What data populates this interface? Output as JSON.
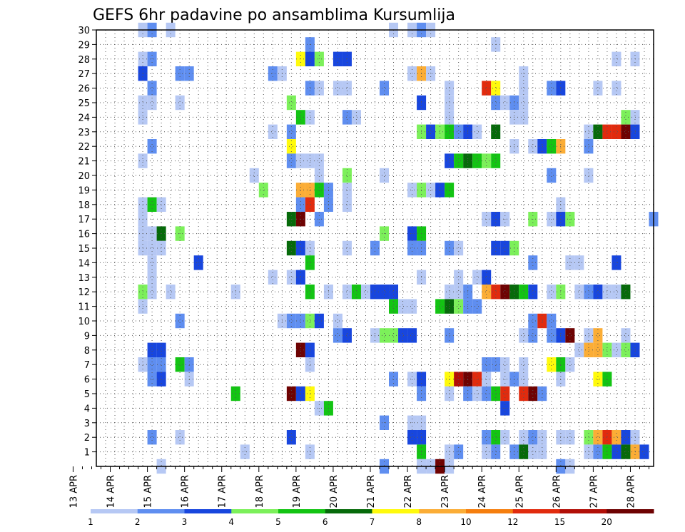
{
  "chart_data": {
    "type": "heatmap",
    "title": "GEFS 6hr padavine po ansamblima Kursumlija",
    "xlabel": "",
    "ylabel": "",
    "x_ticks": [
      "13 APR",
      "14 APR",
      "15 APR",
      "16 APR",
      "17 APR",
      "18 APR",
      "19 APR",
      "20 APR",
      "21 APR",
      "22 APR",
      "23 APR",
      "24 APR",
      "25 APR",
      "26 APR",
      "27 APR",
      "28 APR"
    ],
    "y_ticks": [
      "1",
      "2",
      "3",
      "4",
      "5",
      "6",
      "7",
      "8",
      "9",
      "10",
      "11",
      "12",
      "13",
      "14",
      "15",
      "16",
      "17",
      "18",
      "19",
      "20",
      "21",
      "22",
      "23",
      "24",
      "25",
      "26",
      "27",
      "28",
      "29",
      "30"
    ],
    "x_range_steps": [
      0,
      60
    ],
    "steps_per_day": 4,
    "y_range_members": [
      0,
      30
    ],
    "grid": true,
    "colorbar": {
      "ticks": [
        "1",
        "2",
        "3",
        "4",
        "5",
        "6",
        "7",
        "8",
        "10",
        "12",
        "15",
        "20"
      ],
      "colors": [
        "#b6c8f4",
        "#5f8ef0",
        "#1846de",
        "#7cf05a",
        "#13c413",
        "#066a0a",
        "#fffa0c",
        "#fbad36",
        "#f57e0e",
        "#e12b0e",
        "#b20f07",
        "#6e0202"
      ]
    },
    "cells": [
      [
        30,
        5,
        1
      ],
      [
        30,
        6,
        2
      ],
      [
        30,
        8,
        1
      ],
      [
        30,
        32,
        1
      ],
      [
        30,
        34,
        1
      ],
      [
        30,
        35,
        2
      ],
      [
        30,
        36,
        1
      ],
      [
        29,
        23,
        2
      ],
      [
        29,
        43,
        1
      ],
      [
        28,
        5,
        1
      ],
      [
        28,
        6,
        2
      ],
      [
        28,
        22,
        7
      ],
      [
        28,
        23,
        3
      ],
      [
        28,
        24,
        4
      ],
      [
        28,
        26,
        3
      ],
      [
        28,
        27,
        3
      ],
      [
        28,
        56,
        1
      ],
      [
        28,
        58,
        1
      ],
      [
        27,
        5,
        3
      ],
      [
        27,
        9,
        2
      ],
      [
        27,
        10,
        2
      ],
      [
        27,
        19,
        2
      ],
      [
        27,
        20,
        1
      ],
      [
        27,
        34,
        1
      ],
      [
        27,
        35,
        8
      ],
      [
        27,
        36,
        1
      ],
      [
        27,
        46,
        1
      ],
      [
        26,
        6,
        2
      ],
      [
        26,
        23,
        2
      ],
      [
        26,
        24,
        1
      ],
      [
        26,
        26,
        1
      ],
      [
        26,
        27,
        1
      ],
      [
        26,
        31,
        2
      ],
      [
        26,
        38,
        1
      ],
      [
        26,
        42,
        10
      ],
      [
        26,
        43,
        7
      ],
      [
        26,
        46,
        1
      ],
      [
        26,
        49,
        2
      ],
      [
        26,
        50,
        3
      ],
      [
        26,
        54,
        1
      ],
      [
        26,
        56,
        1
      ],
      [
        25,
        5,
        1
      ],
      [
        25,
        6,
        1
      ],
      [
        25,
        9,
        1
      ],
      [
        25,
        21,
        4
      ],
      [
        25,
        35,
        3
      ],
      [
        25,
        38,
        1
      ],
      [
        25,
        43,
        2
      ],
      [
        25,
        44,
        1
      ],
      [
        25,
        45,
        2
      ],
      [
        25,
        46,
        1
      ],
      [
        24,
        5,
        1
      ],
      [
        24,
        22,
        5
      ],
      [
        24,
        23,
        1
      ],
      [
        24,
        27,
        2
      ],
      [
        24,
        28,
        1
      ],
      [
        24,
        38,
        1
      ],
      [
        24,
        45,
        1
      ],
      [
        24,
        46,
        1
      ],
      [
        24,
        57,
        4
      ],
      [
        24,
        58,
        1
      ],
      [
        23,
        19,
        1
      ],
      [
        23,
        21,
        2
      ],
      [
        23,
        35,
        4
      ],
      [
        23,
        36,
        3
      ],
      [
        23,
        37,
        4
      ],
      [
        23,
        38,
        5
      ],
      [
        23,
        39,
        2
      ],
      [
        23,
        40,
        3
      ],
      [
        23,
        41,
        1
      ],
      [
        23,
        43,
        6
      ],
      [
        23,
        53,
        1
      ],
      [
        23,
        54,
        6
      ],
      [
        23,
        55,
        10
      ],
      [
        23,
        56,
        10
      ],
      [
        23,
        57,
        12
      ],
      [
        23,
        58,
        3
      ],
      [
        22,
        6,
        2
      ],
      [
        22,
        21,
        7
      ],
      [
        22,
        45,
        1
      ],
      [
        22,
        47,
        1
      ],
      [
        22,
        48,
        3
      ],
      [
        22,
        49,
        5
      ],
      [
        22,
        50,
        8
      ],
      [
        22,
        53,
        2
      ],
      [
        21,
        5,
        1
      ],
      [
        21,
        21,
        2
      ],
      [
        21,
        22,
        1
      ],
      [
        21,
        23,
        1
      ],
      [
        21,
        24,
        1
      ],
      [
        21,
        38,
        3
      ],
      [
        21,
        39,
        5
      ],
      [
        21,
        40,
        6
      ],
      [
        21,
        41,
        5
      ],
      [
        21,
        42,
        4
      ],
      [
        21,
        43,
        5
      ],
      [
        20,
        17,
        1
      ],
      [
        20,
        24,
        1
      ],
      [
        20,
        27,
        4
      ],
      [
        20,
        31,
        1
      ],
      [
        20,
        49,
        2
      ],
      [
        20,
        53,
        1
      ],
      [
        19,
        18,
        4
      ],
      [
        19,
        22,
        8
      ],
      [
        19,
        23,
        8
      ],
      [
        19,
        24,
        5
      ],
      [
        19,
        25,
        2
      ],
      [
        19,
        27,
        1
      ],
      [
        19,
        34,
        1
      ],
      [
        19,
        35,
        4
      ],
      [
        19,
        36,
        1
      ],
      [
        19,
        37,
        3
      ],
      [
        19,
        38,
        5
      ],
      [
        18,
        5,
        1
      ],
      [
        18,
        6,
        5
      ],
      [
        18,
        7,
        1
      ],
      [
        18,
        22,
        2
      ],
      [
        18,
        23,
        10
      ],
      [
        18,
        25,
        2
      ],
      [
        18,
        27,
        1
      ],
      [
        18,
        50,
        1
      ],
      [
        17,
        5,
        1
      ],
      [
        17,
        21,
        6
      ],
      [
        17,
        22,
        12
      ],
      [
        17,
        24,
        2
      ],
      [
        17,
        42,
        1
      ],
      [
        17,
        43,
        3
      ],
      [
        17,
        44,
        1
      ],
      [
        17,
        47,
        4
      ],
      [
        17,
        49,
        1
      ],
      [
        17,
        50,
        3
      ],
      [
        17,
        51,
        4
      ],
      [
        17,
        60,
        2
      ],
      [
        16,
        5,
        1
      ],
      [
        16,
        6,
        1
      ],
      [
        16,
        7,
        6
      ],
      [
        16,
        9,
        4
      ],
      [
        16,
        31,
        4
      ],
      [
        16,
        34,
        3
      ],
      [
        16,
        35,
        5
      ],
      [
        15,
        5,
        1
      ],
      [
        15,
        6,
        1
      ],
      [
        15,
        7,
        1
      ],
      [
        15,
        21,
        6
      ],
      [
        15,
        22,
        3
      ],
      [
        15,
        23,
        1
      ],
      [
        15,
        27,
        1
      ],
      [
        15,
        30,
        2
      ],
      [
        15,
        34,
        2
      ],
      [
        15,
        35,
        2
      ],
      [
        15,
        38,
        2
      ],
      [
        15,
        39,
        1
      ],
      [
        15,
        43,
        3
      ],
      [
        15,
        44,
        3
      ],
      [
        15,
        45,
        4
      ],
      [
        14,
        6,
        1
      ],
      [
        14,
        11,
        3
      ],
      [
        14,
        23,
        5
      ],
      [
        14,
        47,
        2
      ],
      [
        14,
        51,
        1
      ],
      [
        14,
        52,
        1
      ],
      [
        14,
        56,
        3
      ],
      [
        13,
        6,
        1
      ],
      [
        13,
        19,
        1
      ],
      [
        13,
        21,
        1
      ],
      [
        13,
        22,
        3
      ],
      [
        13,
        35,
        1
      ],
      [
        13,
        39,
        1
      ],
      [
        13,
        41,
        1
      ],
      [
        13,
        42,
        3
      ],
      [
        12,
        5,
        4
      ],
      [
        12,
        6,
        1
      ],
      [
        12,
        8,
        1
      ],
      [
        12,
        15,
        1
      ],
      [
        12,
        23,
        5
      ],
      [
        12,
        25,
        1
      ],
      [
        12,
        27,
        1
      ],
      [
        12,
        28,
        5
      ],
      [
        12,
        29,
        1
      ],
      [
        12,
        30,
        3
      ],
      [
        12,
        31,
        3
      ],
      [
        12,
        32,
        3
      ],
      [
        12,
        38,
        1
      ],
      [
        12,
        39,
        1
      ],
      [
        12,
        40,
        2
      ],
      [
        12,
        42,
        8
      ],
      [
        12,
        43,
        10
      ],
      [
        12,
        44,
        12
      ],
      [
        12,
        45,
        6
      ],
      [
        12,
        46,
        5
      ],
      [
        12,
        47,
        3
      ],
      [
        12,
        49,
        1
      ],
      [
        12,
        50,
        4
      ],
      [
        12,
        52,
        1
      ],
      [
        12,
        53,
        2
      ],
      [
        12,
        54,
        3
      ],
      [
        12,
        55,
        1
      ],
      [
        12,
        56,
        1
      ],
      [
        12,
        57,
        6
      ],
      [
        11,
        5,
        1
      ],
      [
        11,
        32,
        5
      ],
      [
        11,
        33,
        1
      ],
      [
        11,
        34,
        1
      ],
      [
        11,
        37,
        5
      ],
      [
        11,
        38,
        6
      ],
      [
        11,
        39,
        4
      ],
      [
        11,
        40,
        2
      ],
      [
        11,
        41,
        2
      ],
      [
        10,
        9,
        2
      ],
      [
        10,
        20,
        1
      ],
      [
        10,
        21,
        2
      ],
      [
        10,
        22,
        2
      ],
      [
        10,
        23,
        4
      ],
      [
        10,
        24,
        3
      ],
      [
        10,
        26,
        1
      ],
      [
        10,
        47,
        2
      ],
      [
        10,
        48,
        10
      ],
      [
        10,
        49,
        2
      ],
      [
        9,
        26,
        2
      ],
      [
        9,
        27,
        3
      ],
      [
        9,
        30,
        1
      ],
      [
        9,
        31,
        4
      ],
      [
        9,
        32,
        4
      ],
      [
        9,
        33,
        3
      ],
      [
        9,
        34,
        3
      ],
      [
        9,
        38,
        2
      ],
      [
        9,
        46,
        1
      ],
      [
        9,
        47,
        2
      ],
      [
        9,
        49,
        2
      ],
      [
        9,
        50,
        3
      ],
      [
        9,
        51,
        12
      ],
      [
        9,
        53,
        1
      ],
      [
        9,
        54,
        8
      ],
      [
        9,
        57,
        1
      ],
      [
        8,
        6,
        3
      ],
      [
        8,
        7,
        3
      ],
      [
        8,
        22,
        12
      ],
      [
        8,
        23,
        3
      ],
      [
        8,
        52,
        1
      ],
      [
        8,
        53,
        8
      ],
      [
        8,
        54,
        8
      ],
      [
        8,
        55,
        4
      ],
      [
        8,
        56,
        1
      ],
      [
        8,
        57,
        4
      ],
      [
        8,
        58,
        3
      ],
      [
        7,
        5,
        1
      ],
      [
        7,
        6,
        2
      ],
      [
        7,
        7,
        2
      ],
      [
        7,
        9,
        5
      ],
      [
        7,
        10,
        2
      ],
      [
        7,
        23,
        1
      ],
      [
        7,
        42,
        2
      ],
      [
        7,
        43,
        2
      ],
      [
        7,
        44,
        1
      ],
      [
        7,
        46,
        1
      ],
      [
        7,
        49,
        7
      ],
      [
        7,
        50,
        5
      ],
      [
        7,
        51,
        1
      ],
      [
        6,
        6,
        2
      ],
      [
        6,
        7,
        3
      ],
      [
        6,
        10,
        1
      ],
      [
        6,
        32,
        2
      ],
      [
        6,
        34,
        1
      ],
      [
        6,
        35,
        3
      ],
      [
        6,
        38,
        7
      ],
      [
        6,
        39,
        11
      ],
      [
        6,
        40,
        12
      ],
      [
        6,
        41,
        10
      ],
      [
        6,
        42,
        1
      ],
      [
        6,
        44,
        1
      ],
      [
        6,
        45,
        2
      ],
      [
        6,
        46,
        1
      ],
      [
        6,
        50,
        1
      ],
      [
        6,
        54,
        7
      ],
      [
        6,
        55,
        5
      ],
      [
        5,
        15,
        5
      ],
      [
        5,
        21,
        12
      ],
      [
        5,
        22,
        3
      ],
      [
        5,
        23,
        7
      ],
      [
        5,
        35,
        2
      ],
      [
        5,
        38,
        1
      ],
      [
        5,
        40,
        2
      ],
      [
        5,
        41,
        1
      ],
      [
        5,
        42,
        2
      ],
      [
        5,
        43,
        5
      ],
      [
        5,
        44,
        10
      ],
      [
        5,
        46,
        10
      ],
      [
        5,
        47,
        12
      ],
      [
        5,
        48,
        2
      ],
      [
        4,
        24,
        1
      ],
      [
        4,
        25,
        5
      ],
      [
        4,
        44,
        3
      ],
      [
        3,
        31,
        2
      ],
      [
        3,
        34,
        1
      ],
      [
        3,
        35,
        1
      ],
      [
        2,
        6,
        2
      ],
      [
        2,
        9,
        1
      ],
      [
        2,
        21,
        3
      ],
      [
        2,
        34,
        3
      ],
      [
        2,
        35,
        3
      ],
      [
        2,
        42,
        2
      ],
      [
        2,
        43,
        5
      ],
      [
        2,
        44,
        1
      ],
      [
        2,
        46,
        1
      ],
      [
        2,
        47,
        2
      ],
      [
        2,
        48,
        1
      ],
      [
        2,
        50,
        1
      ],
      [
        2,
        51,
        1
      ],
      [
        2,
        53,
        4
      ],
      [
        2,
        54,
        8
      ],
      [
        2,
        55,
        10
      ],
      [
        2,
        56,
        8
      ],
      [
        2,
        57,
        3
      ],
      [
        2,
        58,
        1
      ],
      [
        1,
        16,
        1
      ],
      [
        1,
        23,
        1
      ],
      [
        1,
        35,
        5
      ],
      [
        1,
        38,
        1
      ],
      [
        1,
        39,
        2
      ],
      [
        1,
        42,
        1
      ],
      [
        1,
        43,
        2
      ],
      [
        1,
        45,
        2
      ],
      [
        1,
        46,
        6
      ],
      [
        1,
        47,
        1
      ],
      [
        1,
        48,
        1
      ],
      [
        1,
        53,
        1
      ],
      [
        1,
        54,
        2
      ],
      [
        1,
        55,
        5
      ],
      [
        1,
        56,
        3
      ],
      [
        1,
        57,
        6
      ],
      [
        1,
        58,
        8
      ],
      [
        1,
        59,
        3
      ],
      [
        0,
        7,
        1
      ],
      [
        0,
        31,
        2
      ],
      [
        0,
        35,
        1
      ],
      [
        0,
        36,
        1
      ],
      [
        0,
        37,
        12
      ],
      [
        0,
        38,
        1
      ],
      [
        0,
        50,
        2
      ],
      [
        0,
        51,
        1
      ]
    ]
  }
}
